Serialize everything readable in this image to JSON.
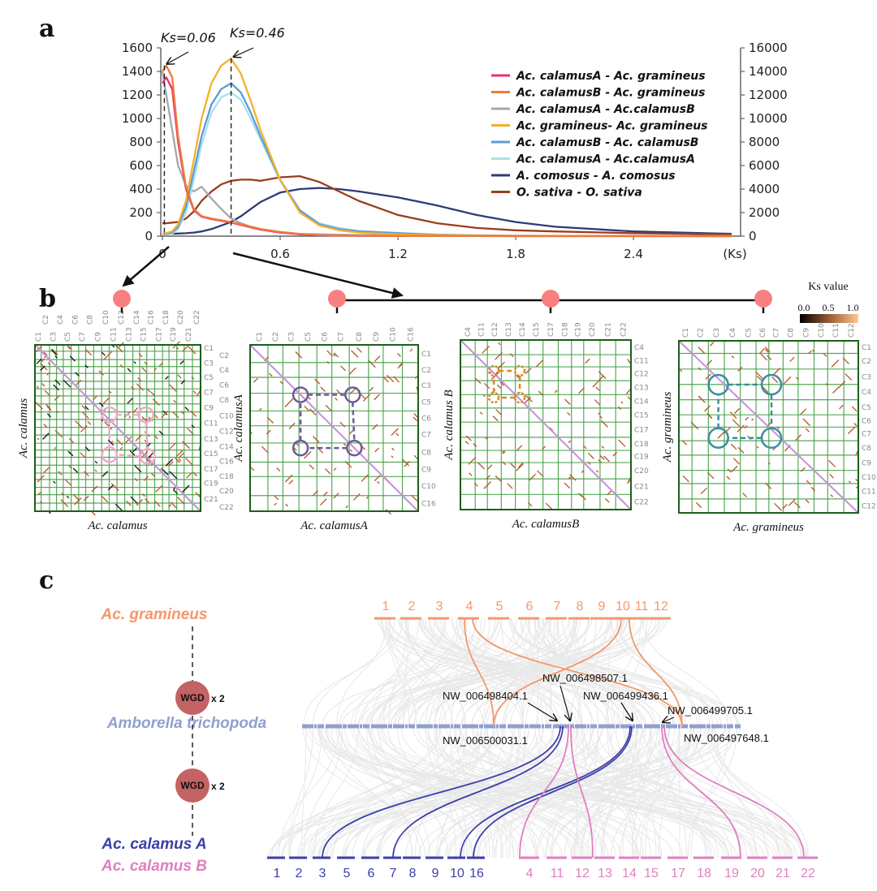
{
  "panel_labels": {
    "a": "a",
    "b": "b",
    "c": "c"
  },
  "chart_data": {
    "type": "line",
    "title": "",
    "xlabel": "(Ks)",
    "ylabel": "",
    "ylim": [
      0,
      1600
    ],
    "y2lim": [
      0,
      16000
    ],
    "xlim": [
      0,
      2.9
    ],
    "grid": false,
    "legend": "top-right",
    "xticks": [
      0,
      0.6,
      1.2,
      1.8,
      2.4
    ],
    "xtick_labels": [
      "0",
      "0.6",
      "1.2",
      "1.8",
      "2.4"
    ],
    "yticks": [
      0,
      200,
      400,
      600,
      800,
      1000,
      1200,
      1400,
      1600
    ],
    "ytick_labels": [
      "0",
      "200",
      "400",
      "600",
      "800",
      "1000",
      "1200",
      "1400",
      "1600"
    ],
    "y2ticks": [
      0,
      2000,
      4000,
      6000,
      8000,
      10000,
      12000,
      14000,
      16000
    ],
    "y2tick_labels": [
      "0",
      "2000",
      "4000",
      "6000",
      "8000",
      "10000",
      "12000",
      "14000",
      "16000"
    ],
    "annotations": [
      {
        "text": "Ks=0.06",
        "x": 0.01
      },
      {
        "text": "Ks=0.46",
        "x": 0.35
      }
    ],
    "x": [
      0,
      0.02,
      0.05,
      0.08,
      0.12,
      0.16,
      0.2,
      0.25,
      0.3,
      0.35,
      0.4,
      0.45,
      0.5,
      0.6,
      0.7,
      0.8,
      0.9,
      1.0,
      1.2,
      1.4,
      1.6,
      1.8,
      2.0,
      2.4,
      2.9
    ],
    "series": [
      {
        "name": "Ac. calamusA - Ac. gramineus",
        "color": "#e8336b",
        "values": [
          1300,
          1350,
          1250,
          800,
          400,
          220,
          165,
          145,
          130,
          115,
          95,
          75,
          55,
          30,
          15,
          8,
          5,
          3,
          2,
          1,
          1,
          0,
          0,
          0,
          0
        ]
      },
      {
        "name": "Ac. calamusB - Ac. gramineus",
        "color": "#ee7a3c",
        "values": [
          1400,
          1450,
          1350,
          850,
          420,
          230,
          170,
          150,
          135,
          120,
          100,
          80,
          60,
          35,
          18,
          10,
          6,
          4,
          2,
          1,
          1,
          0,
          0,
          0,
          0
        ]
      },
      {
        "name": "Ac. calamusA - Ac.calamusB",
        "color": "#a8a8a8",
        "values": [
          1400,
          1200,
          900,
          600,
          430,
          380,
          420,
          320,
          230,
          150,
          110,
          80,
          60,
          35,
          20,
          15,
          12,
          10,
          8,
          6,
          5,
          4,
          3,
          2,
          1
        ]
      },
      {
        "name": "Ac. gramineus- Ac. gramineus",
        "color": "#f5b12a",
        "values": [
          20,
          25,
          40,
          100,
          300,
          650,
          1000,
          1300,
          1450,
          1510,
          1380,
          1150,
          900,
          480,
          200,
          90,
          50,
          30,
          15,
          8,
          5,
          3,
          2,
          1,
          0
        ]
      },
      {
        "name": "Ac. calamusB - Ac. calamusB",
        "color": "#5b9bd5",
        "values": [
          15,
          20,
          30,
          80,
          250,
          550,
          850,
          1120,
          1250,
          1300,
          1220,
          1050,
          850,
          480,
          220,
          100,
          60,
          40,
          25,
          12,
          6,
          3,
          2,
          1,
          0
        ]
      },
      {
        "name": "Ac. calamusA - Ac.calamusA",
        "color": "#a9e0ef",
        "values": [
          10,
          12,
          20,
          60,
          200,
          480,
          780,
          1050,
          1180,
          1220,
          1160,
          1000,
          820,
          470,
          220,
          110,
          70,
          45,
          28,
          14,
          7,
          4,
          2,
          1,
          0
        ]
      },
      {
        "name": "A. comosus - A. comosus",
        "color": "#2e3a78",
        "values": [
          20,
          20,
          20,
          22,
          25,
          30,
          40,
          60,
          90,
          120,
          170,
          230,
          290,
          370,
          400,
          410,
          400,
          380,
          330,
          260,
          180,
          120,
          80,
          40,
          20
        ]
      },
      {
        "name": "O. sativa - O. sativa",
        "color": "#9b3d1e",
        "values": [
          110,
          110,
          115,
          120,
          150,
          210,
          300,
          380,
          440,
          470,
          480,
          480,
          470,
          500,
          510,
          460,
          380,
          300,
          180,
          110,
          70,
          50,
          40,
          25,
          15
        ]
      }
    ]
  },
  "panel_b": {
    "ks_legend": {
      "title": "Ks value",
      "ticks": [
        "0.0",
        "0.5",
        "1.0"
      ]
    },
    "plots": [
      {
        "xlabel": "Ac. calamus",
        "ylabel": "Ac. calamus",
        "highlight": "#f4a6cf",
        "chromosomes": [
          "C1",
          "C2",
          "C3",
          "C4",
          "C5",
          "C6",
          "C7",
          "C8",
          "C9",
          "C10",
          "C11",
          "C12",
          "C13",
          "C14",
          "C15",
          "C16",
          "C17",
          "C18",
          "C19",
          "C20",
          "C21",
          "C22"
        ]
      },
      {
        "xlabel": "Ac. calamusA",
        "ylabel": "Ac. calamusA",
        "highlight": "#6b5b95",
        "chromosomes": [
          "C1",
          "C2",
          "C3",
          "C5",
          "C6",
          "C7",
          "C8",
          "C9",
          "C10",
          "C16"
        ]
      },
      {
        "xlabel": "Ac. calamusB",
        "ylabel": "Ac. calamus B",
        "highlight": "#d98a2a",
        "chromosomes": [
          "C4",
          "C11",
          "C12",
          "C13",
          "C14",
          "C15",
          "C17",
          "C18",
          "C19",
          "C20",
          "C21",
          "C22"
        ]
      },
      {
        "xlabel": "Ac. gramineus",
        "ylabel": "Ac. gramineus",
        "highlight": "#3a8ea0",
        "chromosomes": [
          "C1",
          "C2",
          "C3",
          "C4",
          "C5",
          "C6",
          "C7",
          "C8",
          "C9",
          "C10",
          "C11",
          "C12"
        ]
      }
    ]
  },
  "panel_c": {
    "gramineus": {
      "label": "Ac. gramineus",
      "color": "#f4976c",
      "chromosomes": [
        "1",
        "2",
        "3",
        "4",
        "5",
        "6",
        "7",
        "8",
        "9",
        "10",
        "11",
        "12"
      ]
    },
    "amborella": {
      "label": "Amborella trichopoda",
      "color": "#8fa0d0"
    },
    "calamus_a": {
      "label": "Ac. calamus A",
      "color": "#3b3fa8",
      "chromosomes": [
        "1",
        "2",
        "3",
        "5",
        "6",
        "7",
        "8",
        "9",
        "10",
        "16"
      ]
    },
    "calamus_b": {
      "label": "Ac. calamus B",
      "color": "#e07fc0",
      "chromosomes": [
        "4",
        "11",
        "12",
        "13",
        "14",
        "15",
        "17",
        "18",
        "19",
        "20",
        "21",
        "22"
      ]
    },
    "wgd": [
      {
        "label": "WGD",
        "times": "x 2"
      },
      {
        "label": "WGD",
        "times": "x 2"
      }
    ],
    "scaffolds": [
      "NW_006498404.1",
      "NW_006498507.1",
      "NW_006499436.1",
      "NW_006499705.1",
      "NW_006500031.1",
      "NW_006497648.1"
    ]
  }
}
